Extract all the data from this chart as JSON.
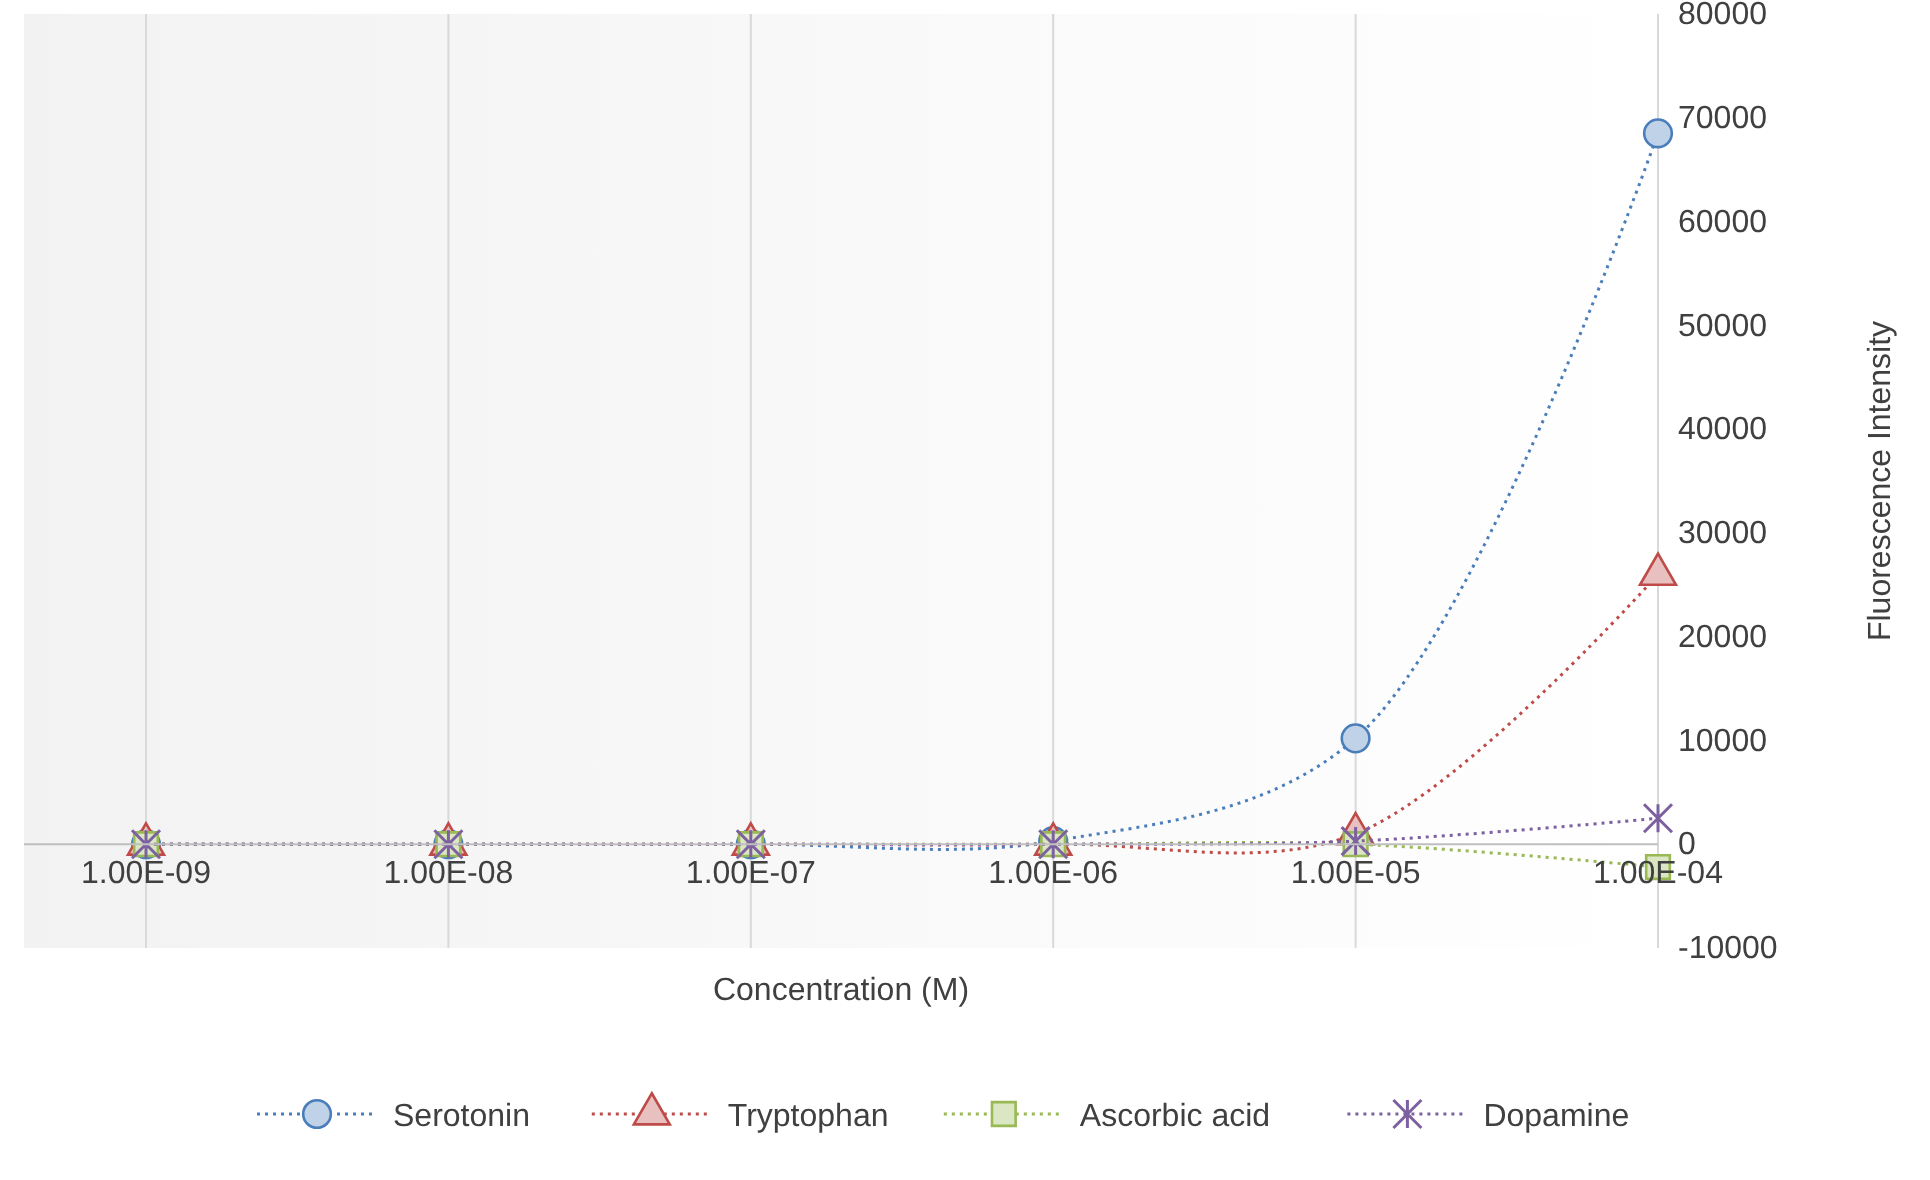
{
  "chart_data": {
    "type": "line",
    "xlabel": "Concentration (M)",
    "ylabel": "Fluorescence Intensity",
    "categories": [
      "1.00E-09",
      "1.00E-08",
      "1.00E-07",
      "1.00E-06",
      "1.00E-05",
      "1.00E-04"
    ],
    "series": [
      {
        "name": "Serotonin",
        "color": "#4a7ebb",
        "marker": "circle",
        "values": [
          0,
          0,
          0,
          300,
          10200,
          68500
        ]
      },
      {
        "name": "Tryptophan",
        "color": "#be4b48",
        "marker": "triangle",
        "values": [
          0,
          0,
          0,
          0,
          1000,
          26000
        ]
      },
      {
        "name": "Ascorbic acid",
        "color": "#98b954",
        "marker": "square",
        "values": [
          0,
          0,
          0,
          0,
          0,
          -2200
        ]
      },
      {
        "name": "Dopamine",
        "color": "#7d60a0",
        "marker": "cross",
        "values": [
          0,
          0,
          0,
          0,
          300,
          2500
        ]
      }
    ],
    "ylim": [
      -10000,
      80000
    ],
    "yticks": [
      -10000,
      0,
      10000,
      20000,
      30000,
      40000,
      50000,
      60000,
      70000,
      80000
    ],
    "grid": "x",
    "legend": "bottom",
    "line_style": "dotted"
  }
}
